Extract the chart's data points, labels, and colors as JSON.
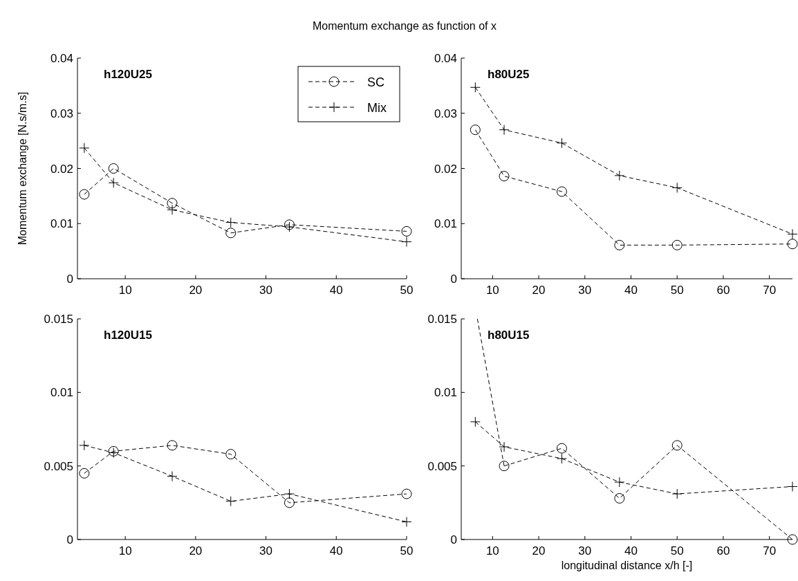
{
  "chart_data": [
    {
      "type": "line",
      "title": "Momentum exchange as function of x",
      "ylabel": "Momentum exchange [N.s/m.s]",
      "annotations": [
        "h120U25"
      ],
      "legend": "top right",
      "line_style": "dashed",
      "xlim": [
        3.2,
        50
      ],
      "xticks": [
        10,
        20,
        30,
        40,
        50
      ],
      "ylim": [
        0,
        0.04
      ],
      "yticks": [
        0,
        0.01,
        0.02,
        0.03,
        0.04
      ],
      "x": [
        4.17,
        8.33,
        16.67,
        25,
        33.33,
        50
      ],
      "series": [
        {
          "name": "SC",
          "color": "#000000",
          "marker": "circle",
          "values": [
            0.0153,
            0.02,
            0.0137,
            0.0083,
            0.0098,
            0.0086
          ]
        },
        {
          "name": "Mix",
          "color": "#000000",
          "marker": "cross",
          "values": [
            0.0237,
            0.0174,
            0.0125,
            0.0102,
            0.0094,
            0.0067
          ]
        }
      ]
    },
    {
      "type": "line",
      "annotations": [
        "h80U25"
      ],
      "line_style": "dashed",
      "xlim": [
        3.2,
        75
      ],
      "xticks": [
        10,
        20,
        30,
        40,
        50,
        60,
        70
      ],
      "ylim": [
        0,
        0.04
      ],
      "yticks": [
        0,
        0.01,
        0.02,
        0.03,
        0.04
      ],
      "x": [
        6.25,
        12.5,
        25,
        37.5,
        50,
        75
      ],
      "series": [
        {
          "color": "#000000",
          "marker": "circle",
          "values": [
            0.027,
            0.0186,
            0.0158,
            0.0061,
            0.0061,
            0.0063
          ]
        },
        {
          "color": "#000000",
          "marker": "cross",
          "values": [
            0.0347,
            0.027,
            0.0246,
            0.0187,
            0.0165,
            0.0081
          ]
        }
      ]
    },
    {
      "type": "line",
      "annotations": [
        "h120U15"
      ],
      "line_style": "dashed",
      "xlim": [
        3.2,
        50
      ],
      "xticks": [
        10,
        20,
        30,
        40,
        50
      ],
      "ylim": [
        0,
        0.015
      ],
      "yticks": [
        0,
        0.005,
        0.01,
        0.015
      ],
      "x": [
        4.17,
        8.33,
        16.67,
        25,
        33.33,
        50
      ],
      "series": [
        {
          "color": "#000000",
          "marker": "circle",
          "values": [
            0.0045,
            0.006,
            0.0064,
            0.0058,
            0.0025,
            0.0031
          ]
        },
        {
          "color": "#000000",
          "marker": "cross",
          "values": [
            0.0064,
            0.0059,
            0.0043,
            0.0026,
            0.0031,
            0.0012
          ]
        }
      ]
    },
    {
      "type": "line",
      "xlabel": "longitudinal distance x/h [-]",
      "annotations": [
        "h80U15"
      ],
      "line_style": "dashed",
      "xlim": [
        3.2,
        75
      ],
      "xticks": [
        10,
        20,
        30,
        40,
        50,
        60,
        70
      ],
      "ylim": [
        0,
        0.015
      ],
      "yticks": [
        0,
        0.005,
        0.01,
        0.015
      ],
      "x": [
        6.25,
        12.5,
        25,
        37.5,
        50,
        75
      ],
      "series": [
        {
          "color": "#000000",
          "marker": "circle",
          "values": [
            null,
            0.005,
            0.0062,
            0.0028,
            0.0064,
            0
          ]
        },
        {
          "color": "#000000",
          "marker": "none",
          "x": [
            6.7,
            12.5
          ],
          "values": [
            0.015,
            0.005
          ]
        },
        {
          "color": "#000000",
          "marker": "cross",
          "values": [
            0.008,
            0.0063,
            0.0055,
            0.0039,
            0.0031,
            0.0036
          ]
        }
      ]
    }
  ]
}
